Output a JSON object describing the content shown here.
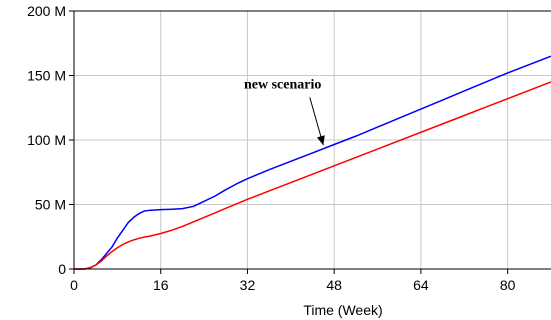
{
  "chart_data": {
    "type": "line",
    "xlabel": "Time (Week)",
    "ylabel": "",
    "xlim": [
      0,
      88
    ],
    "ylim": [
      0,
      200000000
    ],
    "x_ticks": [
      0,
      16,
      32,
      48,
      64,
      80
    ],
    "x_tick_labels": [
      "0",
      "16",
      "32",
      "48",
      "64",
      "80"
    ],
    "y_ticks": [
      0,
      50000000,
      100000000,
      150000000,
      200000000
    ],
    "y_tick_labels": [
      "0",
      "50 M",
      "100 M",
      "150 M",
      "200 M"
    ],
    "grid": true,
    "series": [
      {
        "color": "#0000ff",
        "x": [
          0,
          2,
          3,
          4,
          5,
          6,
          7,
          8,
          9,
          10,
          11,
          12,
          13,
          14,
          15,
          16,
          18,
          20,
          22,
          24,
          26,
          28,
          30,
          32,
          34,
          36,
          40,
          44,
          48,
          52,
          56,
          60,
          64,
          68,
          72,
          76,
          80,
          84,
          88
        ],
        "y": [
          0,
          0,
          1000000,
          3000000,
          7000000,
          12000000,
          17000000,
          24000000,
          30000000,
          36000000,
          40000000,
          43000000,
          45000000,
          45500000,
          45700000,
          46000000,
          46300000,
          46800000,
          48500000,
          52500000,
          56500000,
          61500000,
          66000000,
          70000000,
          73500000,
          77000000,
          83500000,
          90000000,
          96500000,
          103000000,
          110000000,
          117000000,
          124000000,
          131000000,
          138000000,
          145000000,
          152000000,
          158500000,
          165000000
        ]
      },
      {
        "color": "#ff0000",
        "x": [
          0,
          2,
          3,
          4,
          5,
          6,
          7,
          8,
          9,
          10,
          11,
          12,
          13,
          14,
          16,
          18,
          20,
          22,
          24,
          26,
          28,
          30,
          32,
          36,
          40,
          44,
          48,
          52,
          56,
          60,
          64,
          68,
          72,
          76,
          80,
          84,
          88
        ],
        "y": [
          0,
          0,
          1000000,
          3000000,
          6000000,
          10000000,
          13500000,
          16500000,
          19000000,
          21000000,
          22500000,
          23800000,
          24800000,
          25500000,
          27500000,
          30000000,
          33000000,
          36500000,
          40000000,
          43500000,
          47000000,
          50500000,
          54000000,
          60500000,
          67000000,
          73500000,
          80000000,
          86500000,
          93000000,
          99500000,
          106000000,
          112500000,
          119000000,
          125500000,
          132000000,
          138500000,
          145000000
        ]
      }
    ],
    "annotations": [
      {
        "text": "new scenario",
        "text_x": 38.5,
        "text_y": 140000000,
        "arrow_to_x": 46,
        "arrow_to_y": 96000000
      }
    ]
  }
}
